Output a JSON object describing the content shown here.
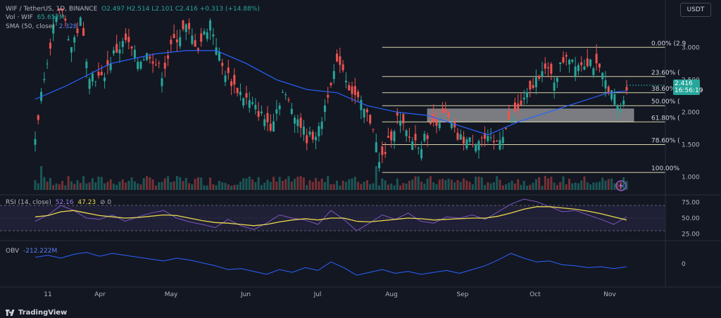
{
  "header": {
    "symbol": "WIF / TetherUS, 1D, BINANCE",
    "ohlc": "O2.497 H2.514 L2.101 C2.416 +0.313 (+14.88%)",
    "currency": "USDT"
  },
  "volume_legend": {
    "label": "Vol · WIF",
    "value": "65.652M"
  },
  "sma_legend": {
    "label": "SMA (50, close)",
    "value": "2.328"
  },
  "rsi_legend": {
    "label": "RSI (14, close)",
    "value1": "52.16",
    "value2": "47.23",
    "suffix": "⊘ 0"
  },
  "obv_legend": {
    "label": "OBV",
    "value": "-212.222M"
  },
  "current_price": {
    "value": "2.416",
    "countdown": "16:56:19"
  },
  "footer": {
    "brand": "TradingView"
  },
  "colors": {
    "up": "#26a69a",
    "down": "#ef5350",
    "sma": "#2962ff",
    "rsi": "#7e57c2",
    "rsi_ma": "#e8d84e",
    "obv": "#2962ff",
    "fib": "#d8d6a8",
    "zone": "#cfcfcf"
  },
  "chart_data": [
    {
      "type": "candlestick",
      "title": "WIF / TetherUS, 1D, BINANCE",
      "x_labels": [
        "11",
        "Apr",
        "May",
        "Jun",
        "Jul",
        "Aug",
        "Sep",
        "Oct",
        "Nov"
      ],
      "y_ticks": [
        "3.000",
        "2.500",
        "2.000",
        "1.500",
        "1.000"
      ],
      "ylim": [
        0.8,
        3.6
      ],
      "close_path": [
        [
          0,
          1.6
        ],
        [
          3,
          2.6
        ],
        [
          6,
          3.3
        ],
        [
          9,
          3.6
        ],
        [
          12,
          3.0
        ],
        [
          15,
          3.4
        ],
        [
          18,
          2.6
        ],
        [
          22,
          2.5
        ],
        [
          26,
          2.9
        ],
        [
          30,
          3.1
        ],
        [
          34,
          2.8
        ],
        [
          38,
          2.9
        ],
        [
          42,
          2.6
        ],
        [
          46,
          3.1
        ],
        [
          50,
          3.3
        ],
        [
          54,
          3.0
        ],
        [
          58,
          3.4
        ],
        [
          62,
          2.7
        ],
        [
          66,
          2.4
        ],
        [
          70,
          2.2
        ],
        [
          74,
          2.0
        ],
        [
          78,
          1.8
        ],
        [
          82,
          2.3
        ],
        [
          86,
          2.0
        ],
        [
          90,
          1.6
        ],
        [
          94,
          1.7
        ],
        [
          98,
          2.5
        ],
        [
          101,
          2.8
        ],
        [
          104,
          2.4
        ],
        [
          108,
          2.1
        ],
        [
          112,
          1.8
        ],
        [
          114,
          1.2
        ],
        [
          116,
          1.4
        ],
        [
          120,
          1.9
        ],
        [
          124,
          1.6
        ],
        [
          128,
          1.5
        ],
        [
          132,
          1.85
        ],
        [
          136,
          1.95
        ],
        [
          140,
          1.6
        ],
        [
          144,
          1.55
        ],
        [
          148,
          1.6
        ],
        [
          152,
          1.5
        ],
        [
          156,
          1.75
        ],
        [
          160,
          2.05
        ],
        [
          164,
          2.3
        ],
        [
          168,
          2.7
        ],
        [
          172,
          2.5
        ],
        [
          176,
          2.9
        ],
        [
          180,
          2.75
        ],
        [
          184,
          2.8
        ],
        [
          188,
          2.55
        ],
        [
          192,
          2.2
        ],
        [
          194,
          2.0
        ],
        [
          196,
          2.416
        ]
      ],
      "sma_50": [
        [
          0,
          2.2
        ],
        [
          10,
          2.4
        ],
        [
          25,
          2.75
        ],
        [
          40,
          2.9
        ],
        [
          50,
          2.95
        ],
        [
          60,
          2.95
        ],
        [
          70,
          2.75
        ],
        [
          80,
          2.5
        ],
        [
          90,
          2.35
        ],
        [
          100,
          2.3
        ],
        [
          110,
          2.1
        ],
        [
          120,
          2.0
        ],
        [
          130,
          1.95
        ],
        [
          140,
          1.8
        ],
        [
          150,
          1.65
        ],
        [
          160,
          1.85
        ],
        [
          170,
          2.0
        ],
        [
          180,
          2.15
        ],
        [
          190,
          2.3
        ],
        [
          196,
          2.328
        ]
      ],
      "fibonacci": [
        {
          "label": "0.00% (2.9",
          "price": 3.0
        },
        {
          "label": "23.60% (",
          "price": 2.55
        },
        {
          "label": "38.60% (",
          "price": 2.3
        },
        {
          "label": "50.00% (",
          "price": 2.1
        },
        {
          "label": "61.80% (",
          "price": 1.85
        },
        {
          "label": "78.60% (",
          "price": 1.5
        },
        {
          "label": "100.00%",
          "price": 1.07
        }
      ],
      "zone": {
        "x_start": 130,
        "x_end": 196,
        "price_low": 1.85,
        "price_high": 2.05
      },
      "last_price": 2.416
    },
    {
      "type": "line",
      "title": "RSI (14, close)",
      "y_ticks": [
        "75.00",
        "50.00",
        "25.00"
      ],
      "ylim": [
        20,
        80
      ],
      "bands": [
        30,
        70
      ],
      "series": [
        {
          "values": [
            45,
            55,
            70,
            62,
            50,
            48,
            55,
            45,
            52,
            58,
            62,
            50,
            44,
            40,
            35,
            48,
            38,
            32,
            42,
            55,
            50,
            47,
            40,
            62,
            48,
            30,
            42,
            55,
            48,
            58,
            45,
            42,
            52,
            50,
            55,
            48,
            60,
            72,
            80,
            76,
            68,
            60,
            62,
            55,
            48,
            40,
            52
          ]
        },
        {
          "values": [
            52,
            54,
            60,
            62,
            58,
            54,
            52,
            50,
            51,
            53,
            55,
            54,
            50,
            46,
            43,
            42,
            40,
            38,
            40,
            44,
            47,
            49,
            47,
            50,
            50,
            45,
            44,
            46,
            48,
            50,
            49,
            47,
            48,
            49,
            50,
            50,
            53,
            58,
            64,
            68,
            68,
            66,
            64,
            61,
            57,
            52,
            47
          ]
        }
      ]
    },
    {
      "type": "line",
      "title": "OBV",
      "y_ticks": [
        "0"
      ],
      "ylim": [
        -1,
        1
      ],
      "series": [
        {
          "values": [
            0.35,
            0.45,
            0.3,
            0.5,
            0.6,
            0.4,
            0.55,
            0.45,
            0.35,
            0.25,
            0.15,
            0.3,
            0.2,
            0.05,
            -0.1,
            -0.3,
            -0.25,
            -0.4,
            -0.55,
            -0.3,
            -0.45,
            -0.2,
            -0.35,
            0.1,
            -0.2,
            -0.6,
            -0.45,
            -0.3,
            -0.5,
            -0.4,
            -0.55,
            -0.45,
            -0.35,
            -0.5,
            -0.3,
            -0.1,
            0.2,
            0.55,
            0.3,
            0.1,
            0.15,
            -0.05,
            -0.1,
            -0.2,
            -0.15,
            -0.25,
            -0.15
          ]
        }
      ]
    }
  ]
}
